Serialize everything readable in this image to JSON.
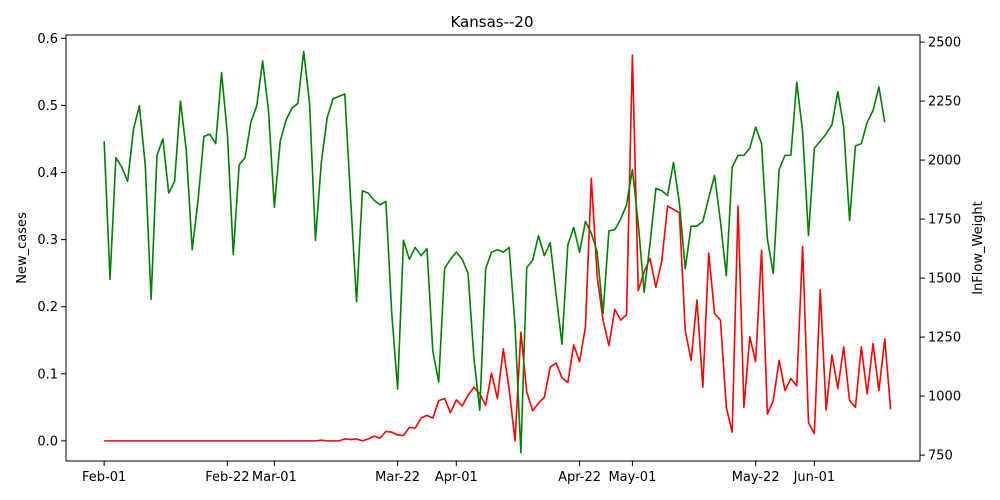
{
  "chart_data": {
    "type": "line",
    "title": "Kansas--20",
    "xlabel": "",
    "ylabel_left": "New_cases",
    "ylabel_right": "InFlow_Weight",
    "x_start": "2020-02-01",
    "x_ticks": [
      {
        "label": "Feb-01",
        "day": 0
      },
      {
        "label": "Feb-22",
        "day": 21
      },
      {
        "label": "Mar-01",
        "day": 29
      },
      {
        "label": "Mar-22",
        "day": 50
      },
      {
        "label": "Apr-01",
        "day": 60
      },
      {
        "label": "Apr-22",
        "day": 81
      },
      {
        "label": "May-01",
        "day": 90
      },
      {
        "label": "May-22",
        "day": 111
      },
      {
        "label": "Jun-01",
        "day": 121
      }
    ],
    "xlim": [
      -6.5,
      139
    ],
    "ylim_left": [
      -0.03,
      0.605
    ],
    "ylim_right": [
      725,
      2530
    ],
    "yticks_left": [
      0.0,
      0.1,
      0.2,
      0.3,
      0.4,
      0.5,
      0.6
    ],
    "yticks_right": [
      750,
      1000,
      1250,
      1500,
      1750,
      2000,
      2250,
      2500
    ],
    "grid": false,
    "series": [
      {
        "axis": "left",
        "color": "#ff0000",
        "values": [
          0,
          0,
          0,
          0,
          0,
          0,
          0,
          0,
          0,
          0,
          0,
          0,
          0,
          0,
          0,
          0,
          0,
          0,
          0,
          0,
          0,
          0,
          0,
          0,
          0,
          0,
          0,
          0,
          0,
          0,
          0,
          0,
          0,
          0,
          0,
          0,
          0,
          0.001,
          0,
          0,
          0,
          0.003,
          0.002,
          0.003,
          0,
          0.003,
          0.007,
          0.004,
          0.014,
          0.013,
          0.009,
          0.008,
          0.02,
          0.019,
          0.034,
          0.038,
          0.034,
          0.06,
          0.063,
          0.042,
          0.061,
          0.052,
          0.068,
          0.08,
          0.07,
          0.053,
          0.101,
          0.063,
          0.137,
          0.077,
          0,
          0.162,
          0.073,
          0.045,
          0.056,
          0.065,
          0.11,
          0.116,
          0.094,
          0.087,
          0.143,
          0.118,
          0.17,
          0.391,
          0.245,
          0.18,
          0.142,
          0.196,
          0.18,
          0.188,
          0.575,
          0.224,
          0.252,
          0.272,
          0.229,
          0.268,
          0.35,
          0.345,
          0.34,
          0.165,
          0.12,
          0.21,
          0.08,
          0.28,
          0.19,
          0.18,
          0.05,
          0.013,
          0.35,
          0.05,
          0.155,
          0.118,
          0.284,
          0.04,
          0.06,
          0.12,
          0.075,
          0.093,
          0.082,
          0.29,
          0.027,
          0.011,
          0.225,
          0.046,
          0.128,
          0.078,
          0.14,
          0.06,
          0.05,
          0.14,
          0.07,
          0.145,
          0.075,
          0.152,
          0.047
        ]
      },
      {
        "axis": "right",
        "color": "#008000",
        "values": [
          2080,
          1495,
          2010,
          1970,
          1910,
          2130,
          2230,
          1980,
          1410,
          2020,
          2090,
          1860,
          1910,
          2250,
          2040,
          1620,
          1830,
          2100,
          2110,
          2070,
          2370,
          2110,
          1600,
          1980,
          2010,
          2160,
          2230,
          2420,
          2210,
          1800,
          2080,
          2170,
          2220,
          2240,
          2460,
          2240,
          1660,
          1990,
          2180,
          2260,
          2270,
          2280,
          1830,
          1400,
          1870,
          1860,
          1830,
          1810,
          1825,
          1350,
          1030,
          1660,
          1580,
          1630,
          1595,
          1625,
          1190,
          1060,
          1540,
          1580,
          1610,
          1580,
          1520,
          1160,
          940,
          1540,
          1610,
          1620,
          1610,
          1630,
          1300,
          760,
          1545,
          1575,
          1680,
          1595,
          1650,
          1430,
          1220,
          1640,
          1715,
          1610,
          1740,
          1690,
          1610,
          1350,
          1700,
          1705,
          1750,
          1810,
          1960,
          1730,
          1440,
          1645,
          1880,
          1870,
          1850,
          1990,
          1820,
          1540,
          1720,
          1720,
          1740,
          1840,
          1935,
          1740,
          1510,
          1970,
          2020,
          2020,
          2050,
          2140,
          2070,
          1665,
          1520,
          1960,
          2020,
          2020,
          2330,
          2120,
          1680,
          2050,
          2080,
          2110,
          2150,
          2290,
          2140,
          1745,
          2060,
          2070,
          2160,
          2210,
          2310,
          2160
        ]
      }
    ]
  }
}
